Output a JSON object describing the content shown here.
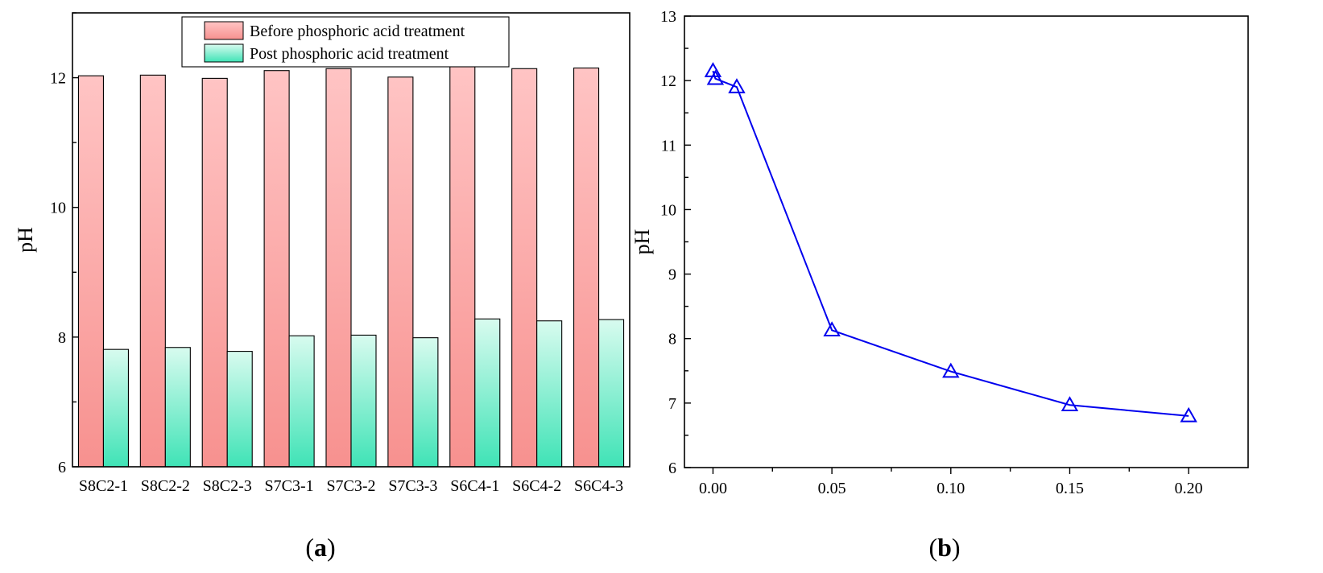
{
  "panels": {
    "a_label": "a",
    "b_label": "b"
  },
  "chart_data": [
    {
      "type": "bar",
      "panel": "a",
      "title": "",
      "xlabel": "",
      "ylabel": "pH",
      "ylim": [
        6,
        13
      ],
      "yticks": [
        "6",
        "8",
        "10",
        "12"
      ],
      "categories": [
        "S8C2-1",
        "S8C2-2",
        "S8C2-3",
        "S7C3-1",
        "S7C3-2",
        "S7C3-3",
        "S6C4-1",
        "S6C4-2",
        "S6C4-3"
      ],
      "series": [
        {
          "name": "Before phosphoric acid treatment",
          "color_top": "#ffc4c4",
          "color_bottom": "#f7918f",
          "values": [
            12.03,
            12.04,
            11.99,
            12.11,
            12.14,
            12.01,
            12.19,
            12.14,
            12.15
          ]
        },
        {
          "name": "Post phosphoric acid treatment",
          "color_top": "#d8fbef",
          "color_bottom": "#3fe3b6",
          "values": [
            7.81,
            7.84,
            7.78,
            8.02,
            8.03,
            7.99,
            8.28,
            8.25,
            8.27
          ]
        }
      ],
      "legend_position": "top-center",
      "grid": false
    },
    {
      "type": "line",
      "panel": "b",
      "title": "",
      "xlabel": "",
      "ylabel": "pH",
      "xlim": [
        -0.012,
        0.225
      ],
      "ylim": [
        6,
        13
      ],
      "xticks": [
        "0.00",
        "0.05",
        "0.10",
        "0.15",
        "0.20"
      ],
      "yticks": [
        "6",
        "7",
        "8",
        "9",
        "10",
        "11",
        "12",
        "13"
      ],
      "series": [
        {
          "name": "pH",
          "color": "#0000ee",
          "marker": "triangle-open",
          "x": [
            0,
            0.001,
            0.01,
            0.05,
            0.1,
            0.15,
            0.2
          ],
          "y": [
            12.15,
            12.03,
            11.9,
            8.13,
            7.49,
            6.97,
            6.8
          ]
        }
      ],
      "grid": false
    }
  ]
}
